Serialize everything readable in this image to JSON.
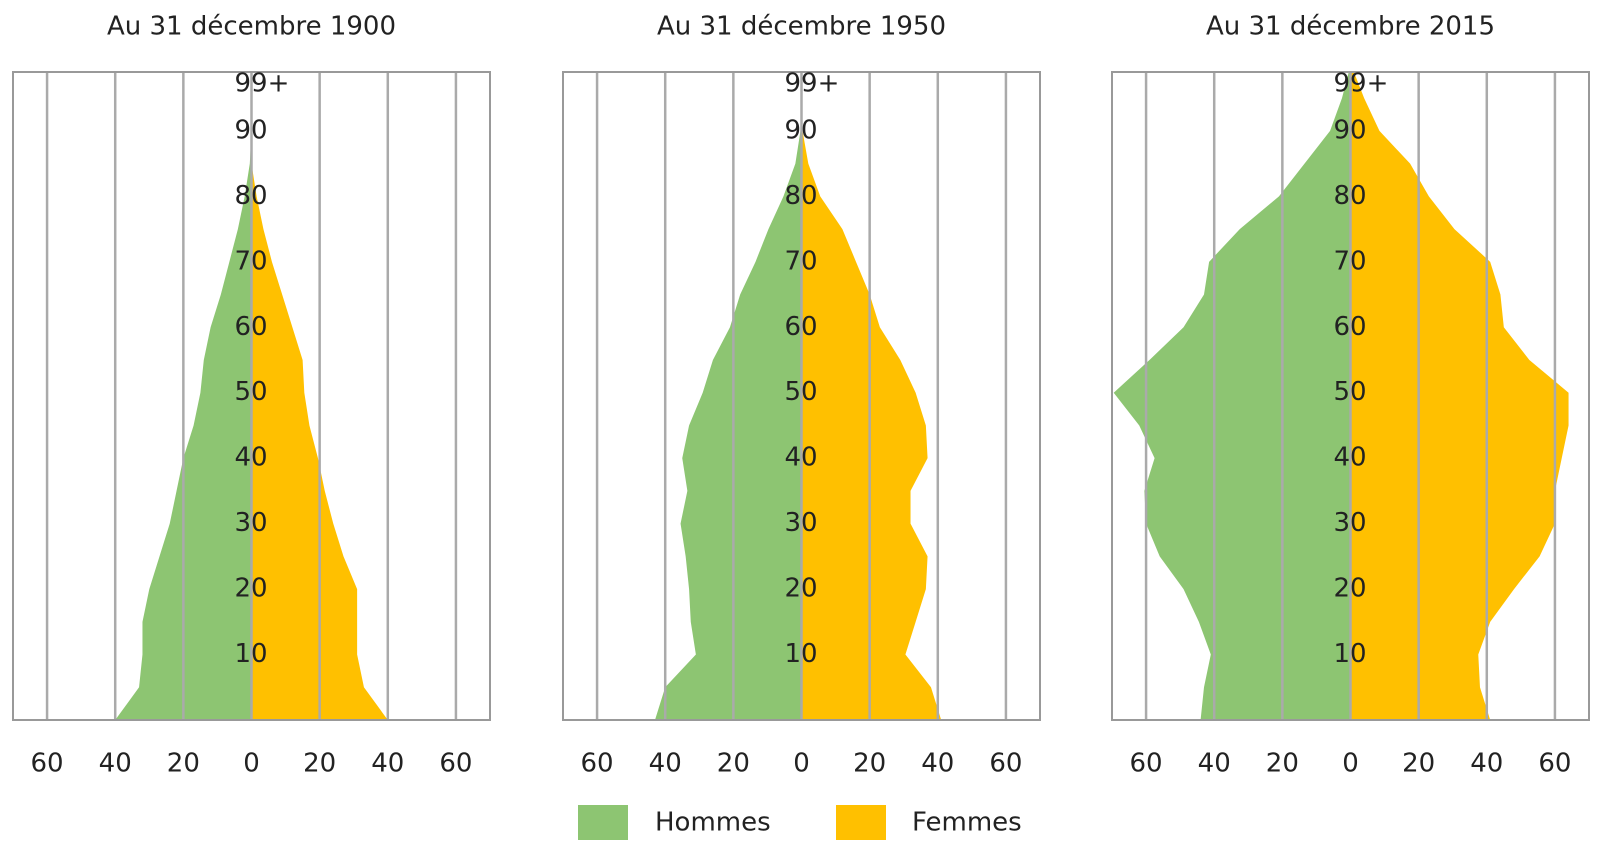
{
  "chart_data": [
    {
      "type": "pyramid",
      "title": "Au 31 décembre 1900",
      "y": [
        0,
        5,
        10,
        15,
        20,
        25,
        30,
        35,
        40,
        45,
        50,
        55,
        60,
        65,
        70,
        75,
        80,
        85,
        90,
        95,
        99
      ],
      "series": [
        {
          "values": [
            40,
            33,
            32,
            32,
            30,
            27,
            24,
            22,
            20,
            17,
            15,
            14,
            12,
            9,
            6.5,
            4,
            2,
            0.5,
            0,
            0,
            0
          ]
        },
        {
          "values": [
            40,
            33,
            31,
            31,
            31,
            27,
            24,
            21.5,
            19.5,
            17,
            15.5,
            15,
            12,
            9,
            6,
            3.5,
            1.5,
            0,
            0,
            0,
            0
          ]
        }
      ],
      "xlim": [
        -70,
        70
      ],
      "xticks": [
        {
          "value": -60,
          "label": "60"
        },
        {
          "value": -40,
          "label": "40"
        },
        {
          "value": -20,
          "label": "20"
        },
        0,
        20,
        40,
        60
      ],
      "ylim": [
        0,
        99
      ],
      "yticks": [
        10,
        20,
        30,
        40,
        50,
        60,
        70,
        80,
        90,
        {
          "value": 99,
          "label": "99+"
        }
      ]
    },
    {
      "type": "pyramid",
      "title": "Au 31 décembre 1950",
      "y": [
        0,
        5,
        10,
        15,
        20,
        25,
        30,
        35,
        40,
        45,
        50,
        55,
        60,
        65,
        70,
        75,
        80,
        85,
        90,
        95,
        99
      ],
      "series": [
        {
          "values": [
            43,
            40,
            31,
            32.5,
            33,
            34,
            35.5,
            33.5,
            35,
            33,
            29,
            26,
            21,
            18,
            13.5,
            9.7,
            5.3,
            1.8,
            0.3,
            0,
            0
          ]
        },
        {
          "values": [
            41,
            38,
            30.5,
            33.5,
            36.5,
            37,
            32,
            32,
            37,
            36.5,
            33.5,
            29,
            23,
            20,
            16,
            12,
            5.5,
            2,
            0.3,
            0,
            0
          ]
        }
      ],
      "xlim": [
        -70,
        70
      ],
      "xticks": [
        {
          "value": -60,
          "label": "60"
        },
        {
          "value": -40,
          "label": "40"
        },
        {
          "value": -20,
          "label": "20"
        },
        0,
        20,
        40,
        60
      ],
      "ylim": [
        0,
        99
      ],
      "yticks": [
        10,
        20,
        30,
        40,
        50,
        60,
        70,
        80,
        90,
        {
          "value": 99,
          "label": "99+"
        }
      ]
    },
    {
      "type": "pyramid",
      "title": "Au 31 décembre 2015",
      "y": [
        0,
        5,
        10,
        15,
        20,
        25,
        30,
        35,
        40,
        45,
        50,
        55,
        60,
        65,
        70,
        75,
        80,
        85,
        90,
        95,
        99
      ],
      "series": [
        {
          "values": [
            44,
            43,
            41,
            44.5,
            49,
            56,
            60,
            60.5,
            57.5,
            62,
            69.5,
            59,
            49,
            43,
            41.5,
            32.5,
            21,
            13.5,
            6,
            2.5,
            0.5
          ]
        },
        {
          "values": [
            41,
            38,
            37.5,
            41,
            48,
            55.5,
            60,
            60,
            62,
            64,
            64,
            52.5,
            45,
            44,
            41,
            30.5,
            23,
            17.5,
            8.5,
            4,
            1
          ]
        }
      ],
      "xlim": [
        -70,
        70
      ],
      "xticks": [
        {
          "value": -60,
          "label": "60"
        },
        {
          "value": -40,
          "label": "40"
        },
        {
          "value": -20,
          "label": "20"
        },
        0,
        20,
        40,
        60
      ],
      "ylim": [
        0,
        99
      ],
      "yticks": [
        10,
        20,
        30,
        40,
        50,
        60,
        70,
        80,
        90,
        {
          "value": 99,
          "label": "99+"
        }
      ]
    }
  ],
  "legend": [
    {
      "name": "Hommes",
      "color": "#8dc572"
    },
    {
      "name": "Femmes",
      "color": "#ffc000"
    }
  ]
}
